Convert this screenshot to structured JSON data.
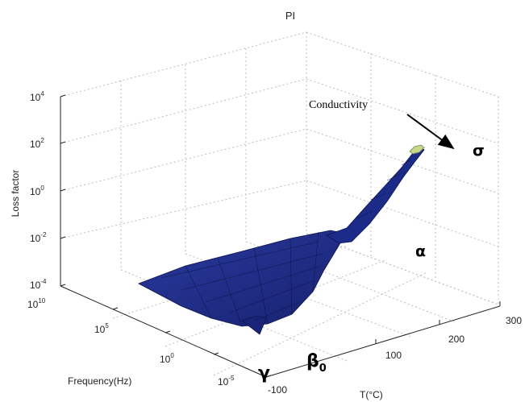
{
  "chart_data": {
    "type": "surface",
    "title": "PI",
    "xlabel": "T(°C)",
    "ylabel": "Frequency(Hz)",
    "zlabel": "Loss factor",
    "x_ticks": [
      "-100",
      "100",
      "200",
      "300"
    ],
    "y_ticks": [
      "10-5",
      "100",
      "105",
      "1010"
    ],
    "z_ticks": [
      "10-4",
      "10-2",
      "100",
      "102",
      "104"
    ],
    "z_scale": "log",
    "y_scale": "log",
    "grid": true,
    "surface_color": "#1f2d8a",
    "annotations": {
      "conductivity": "Conductivity",
      "sigma": "σ",
      "alpha": "α",
      "beta": "β",
      "beta_sub": "0",
      "gamma": "γ"
    }
  }
}
